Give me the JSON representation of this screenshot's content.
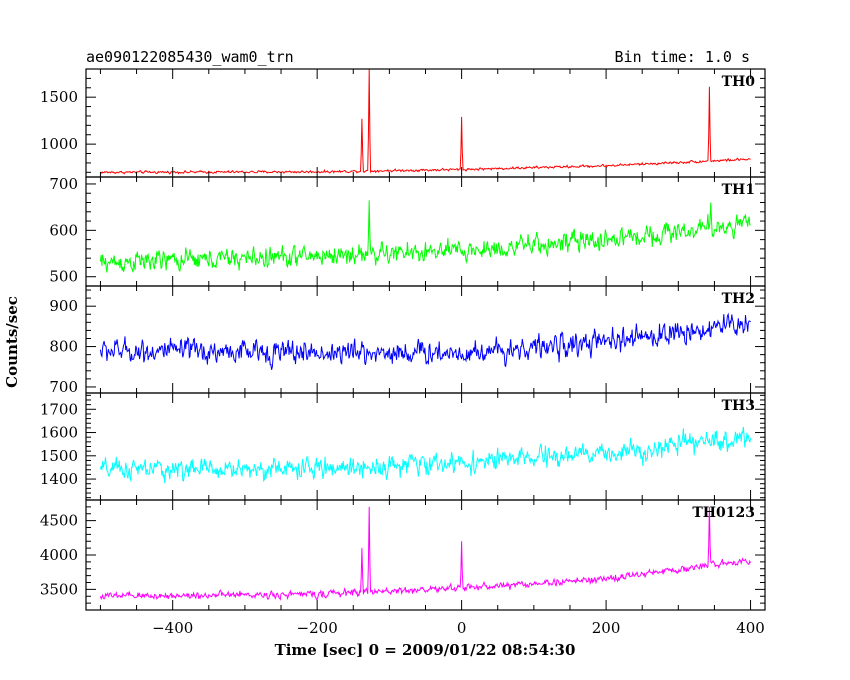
{
  "chart_data": {
    "type": "line",
    "title": "ae090122085430_wam0_trn",
    "bin_time_label": "Bin time: 1.0 s",
    "xlabel": "Time [sec] 0 = 2009/01/22 08:54:30",
    "ylabel": "Counts/sec",
    "xlim": [
      -520,
      420
    ],
    "x_ticks": [
      -400,
      -200,
      0,
      200,
      400
    ],
    "x_tick_labels": [
      "−400",
      "−200",
      "0",
      "200",
      "400"
    ],
    "x_range": [
      -500,
      400
    ],
    "grid": false,
    "panels": [
      {
        "name": "TH0",
        "color": "#ff0000",
        "ylim": [
          650,
          1800
        ],
        "y_ticks": [
          1000,
          1500
        ],
        "y_tick_labels": [
          "1000",
          "1500"
        ],
        "baseline": [
          [
            -500,
            700
          ],
          [
            -200,
            705
          ],
          [
            0,
            730
          ],
          [
            200,
            770
          ],
          [
            400,
            840
          ]
        ],
        "noise_amplitude": 28,
        "spikes": [
          [
            -138,
            1270
          ],
          [
            -128,
            1800
          ],
          [
            0,
            1290
          ],
          [
            343,
            1610
          ]
        ]
      },
      {
        "name": "TH1",
        "color": "#00ff00",
        "ylim": [
          480,
          715
        ],
        "y_ticks": [
          500,
          600,
          700
        ],
        "y_tick_labels": [
          "500",
          "600",
          "700"
        ],
        "baseline": [
          [
            -500,
            530
          ],
          [
            -200,
            545
          ],
          [
            0,
            555
          ],
          [
            200,
            580
          ],
          [
            400,
            615
          ]
        ],
        "noise_amplitude": 48,
        "spikes": [
          [
            -128,
            665
          ],
          [
            345,
            660
          ]
        ]
      },
      {
        "name": "TH2",
        "color": "#0000ff",
        "ylim": [
          685,
          950
        ],
        "y_ticks": [
          700,
          800,
          900
        ],
        "y_tick_labels": [
          "700",
          "800",
          "900"
        ],
        "baseline": [
          [
            -500,
            790
          ],
          [
            -200,
            785
          ],
          [
            0,
            785
          ],
          [
            200,
            810
          ],
          [
            400,
            860
          ]
        ],
        "noise_amplitude": 62,
        "spikes": []
      },
      {
        "name": "TH3",
        "color": "#00ffff",
        "ylim": [
          1310,
          1770
        ],
        "y_ticks": [
          1400,
          1500,
          1600,
          1700
        ],
        "y_tick_labels": [
          "1400",
          "1500",
          "1600",
          "1700"
        ],
        "baseline": [
          [
            -500,
            1440
          ],
          [
            -200,
            1445
          ],
          [
            0,
            1470
          ],
          [
            200,
            1510
          ],
          [
            400,
            1580
          ]
        ],
        "noise_amplitude": 95,
        "spikes": []
      },
      {
        "name": "TH0123",
        "color": "#ff00ff",
        "ylim": [
          3200,
          4800
        ],
        "y_ticks": [
          3500,
          4000,
          4500
        ],
        "y_tick_labels": [
          "3500",
          "4000",
          "4500"
        ],
        "baseline": [
          [
            -500,
            3400
          ],
          [
            -200,
            3430
          ],
          [
            0,
            3520
          ],
          [
            200,
            3650
          ],
          [
            400,
            3930
          ]
        ],
        "noise_amplitude": 110,
        "spikes": [
          [
            -138,
            4100
          ],
          [
            -128,
            4700
          ],
          [
            0,
            4200
          ],
          [
            343,
            4700
          ]
        ]
      }
    ]
  }
}
